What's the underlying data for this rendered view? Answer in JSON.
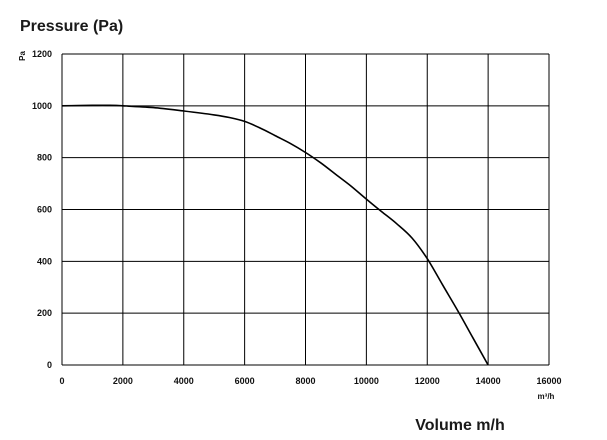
{
  "chart_data": {
    "type": "line",
    "title": "Pressure (Pa)",
    "ylabel": "Pa",
    "xlabel": "Volume m/h",
    "x_unit": "m³/h",
    "xlim": [
      0,
      16000
    ],
    "ylim": [
      0,
      1200
    ],
    "x_ticks": [
      "0",
      "2000",
      "4000",
      "6000",
      "8000",
      "10000",
      "12000",
      "14000",
      "16000"
    ],
    "y_ticks": [
      "0",
      "200",
      "400",
      "600",
      "800",
      "1000",
      "1200"
    ],
    "grid": true,
    "series": [
      {
        "name": "",
        "color": "#000000",
        "x": [
          0,
          500,
          1000,
          1500,
          2000,
          3000,
          4000,
          5000,
          5500,
          6000,
          6500,
          7000,
          7500,
          8000,
          8500,
          9000,
          9500,
          10000,
          10500,
          11000,
          11500,
          12000,
          12500,
          13000,
          13500,
          14000
        ],
        "y": [
          1000,
          1001,
          1002,
          1002,
          1000,
          993,
          980,
          965,
          955,
          940,
          915,
          885,
          855,
          820,
          780,
          735,
          690,
          640,
          592,
          545,
          490,
          410,
          310,
          210,
          105,
          0
        ]
      }
    ]
  }
}
